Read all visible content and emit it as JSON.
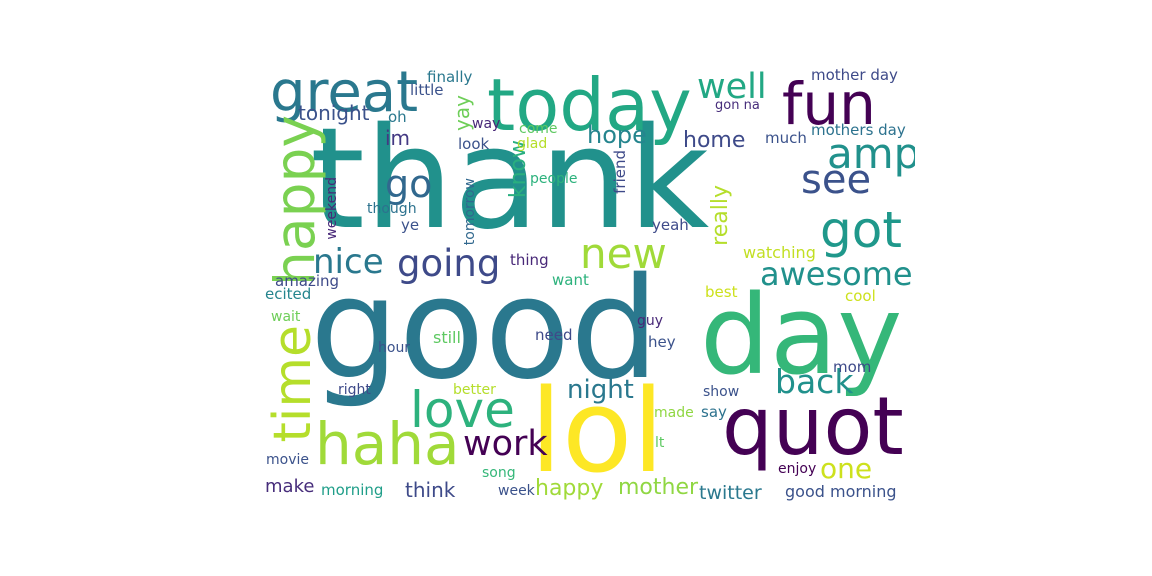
{
  "wordcloud": {
    "words": [
      {
        "text": "thank",
        "color": "#21918c"
      },
      {
        "text": "good",
        "color": "#2a788e"
      },
      {
        "text": "day",
        "color": "#35b779"
      },
      {
        "text": "lol",
        "color": "#fde725"
      },
      {
        "text": "quot",
        "color": "#440154"
      },
      {
        "text": "today",
        "color": "#22a884"
      },
      {
        "text": "fun",
        "color": "#440154"
      },
      {
        "text": "great",
        "color": "#2a788e"
      },
      {
        "text": "haha",
        "color": "#a0da39"
      },
      {
        "text": "happy",
        "color": "#7ad151"
      },
      {
        "text": "amp",
        "color": "#21918c"
      },
      {
        "text": "see",
        "color": "#3b528b"
      },
      {
        "text": "got",
        "color": "#1f988b"
      },
      {
        "text": "new",
        "color": "#a0da39"
      },
      {
        "text": "love",
        "color": "#2db27d"
      },
      {
        "text": "time",
        "color": "#b5de2b"
      },
      {
        "text": "going",
        "color": "#3e4a89"
      },
      {
        "text": "nice",
        "color": "#2a788e"
      },
      {
        "text": "awesome",
        "color": "#21918c"
      },
      {
        "text": "back",
        "color": "#21918c"
      },
      {
        "text": "work",
        "color": "#440154"
      },
      {
        "text": "well",
        "color": "#22a884"
      },
      {
        "text": "go",
        "color": "#31688e"
      },
      {
        "text": "one",
        "color": "#cde11d"
      },
      {
        "text": "night",
        "color": "#2a788e"
      },
      {
        "text": "tonight",
        "color": "#3b528b"
      },
      {
        "text": "hope",
        "color": "#25858e"
      },
      {
        "text": "mother",
        "color": "#90d743"
      },
      {
        "text": "know",
        "color": "#29af7f"
      },
      {
        "text": "really",
        "color": "#b5de2b"
      },
      {
        "text": "home",
        "color": "#3e4a89"
      },
      {
        "text": "think",
        "color": "#3e4a89"
      },
      {
        "text": "twitter",
        "color": "#2a788e"
      },
      {
        "text": "good morning",
        "color": "#3b528b"
      },
      {
        "text": "happy",
        "color": "#a0da39"
      },
      {
        "text": "mother day",
        "color": "#3e4a89"
      },
      {
        "text": "mothers day",
        "color": "#2c728e"
      },
      {
        "text": "im",
        "color": "#443983"
      },
      {
        "text": "yay",
        "color": "#6ece58"
      },
      {
        "text": "make",
        "color": "#472d7b"
      },
      {
        "text": "morning",
        "color": "#1f9e89"
      },
      {
        "text": "finally",
        "color": "#2a788e"
      },
      {
        "text": "little",
        "color": "#3b528b"
      },
      {
        "text": "oh",
        "color": "#2a788e"
      },
      {
        "text": "way",
        "color": "#482878"
      },
      {
        "text": "come",
        "color": "#5ec962"
      },
      {
        "text": "glad",
        "color": "#b5de2b"
      },
      {
        "text": "look",
        "color": "#3b528b"
      },
      {
        "text": "much",
        "color": "#3b528b"
      },
      {
        "text": "gon na",
        "color": "#472d7b"
      },
      {
        "text": "people",
        "color": "#2db27d"
      },
      {
        "text": "friend",
        "color": "#3e4a89"
      },
      {
        "text": "weekend",
        "color": "#482878"
      },
      {
        "text": "though",
        "color": "#2c728e"
      },
      {
        "text": "tomorrow",
        "color": "#31688e"
      },
      {
        "text": "ye",
        "color": "#3b528b"
      },
      {
        "text": "yeah",
        "color": "#3e4a89"
      },
      {
        "text": "thing",
        "color": "#482878"
      },
      {
        "text": "watching",
        "color": "#c2df23"
      },
      {
        "text": "want",
        "color": "#2db27d"
      },
      {
        "text": "amazing",
        "color": "#3e4a89"
      },
      {
        "text": "ecited",
        "color": "#25858e"
      },
      {
        "text": "best",
        "color": "#cde11d"
      },
      {
        "text": "cool",
        "color": "#cde11d"
      },
      {
        "text": "wait",
        "color": "#6ece58"
      },
      {
        "text": "guy",
        "color": "#482878"
      },
      {
        "text": "still",
        "color": "#5ec962"
      },
      {
        "text": "need",
        "color": "#3e4a89"
      },
      {
        "text": "hour",
        "color": "#3b528b"
      },
      {
        "text": "hey",
        "color": "#3b528b"
      },
      {
        "text": "mom",
        "color": "#3e4a89"
      },
      {
        "text": "right",
        "color": "#3e4a89"
      },
      {
        "text": "better",
        "color": "#b5de2b"
      },
      {
        "text": "show",
        "color": "#3b528b"
      },
      {
        "text": "made",
        "color": "#90d743"
      },
      {
        "text": "say",
        "color": "#2c728e"
      },
      {
        "text": "lt",
        "color": "#5ec962"
      },
      {
        "text": "movie",
        "color": "#3b528b"
      },
      {
        "text": "song",
        "color": "#35b779"
      },
      {
        "text": "week",
        "color": "#3b528b"
      },
      {
        "text": "enjoy",
        "color": "#440154"
      }
    ]
  }
}
